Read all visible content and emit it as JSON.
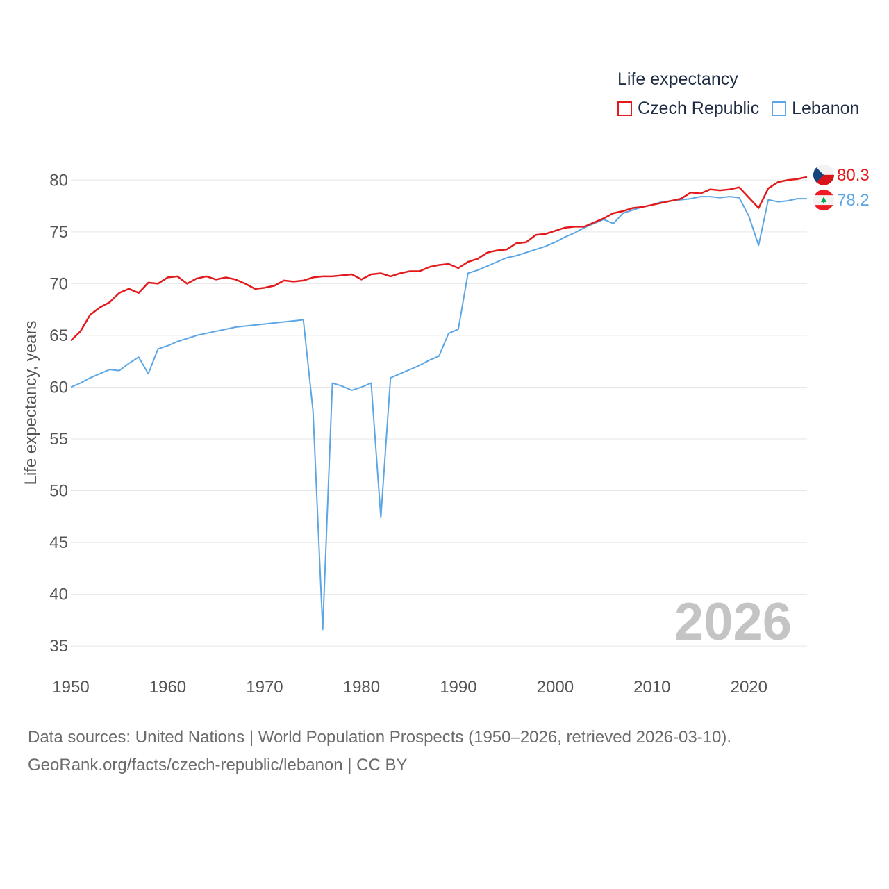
{
  "chart_data": {
    "type": "line",
    "title": "Life expectancy",
    "xlabel": "",
    "ylabel": "Life expectancy, years",
    "xlim": [
      1950,
      2026
    ],
    "ylim": [
      33,
      82.5
    ],
    "xticks": [
      1950,
      1960,
      1970,
      1980,
      1990,
      2000,
      2010,
      2020
    ],
    "yticks": [
      35,
      40,
      45,
      50,
      55,
      60,
      65,
      70,
      75,
      80
    ],
    "grid": true,
    "legend_position": "top-right",
    "year_label": "2026",
    "x": [
      1950,
      1951,
      1952,
      1953,
      1954,
      1955,
      1956,
      1957,
      1958,
      1959,
      1960,
      1961,
      1962,
      1963,
      1964,
      1965,
      1966,
      1967,
      1968,
      1969,
      1970,
      1971,
      1972,
      1973,
      1974,
      1975,
      1976,
      1977,
      1978,
      1979,
      1980,
      1981,
      1982,
      1983,
      1984,
      1985,
      1986,
      1987,
      1988,
      1989,
      1990,
      1991,
      1992,
      1993,
      1994,
      1995,
      1996,
      1997,
      1998,
      1999,
      2000,
      2001,
      2002,
      2003,
      2004,
      2005,
      2006,
      2007,
      2008,
      2009,
      2010,
      2011,
      2012,
      2013,
      2014,
      2015,
      2016,
      2017,
      2018,
      2019,
      2020,
      2021,
      2022,
      2023,
      2024,
      2025,
      2026
    ],
    "series": [
      {
        "name": "Czech Republic",
        "color": "#e31a1c",
        "end_label": "80.3",
        "values": [
          64.5,
          65.4,
          67.0,
          67.7,
          68.2,
          69.1,
          69.5,
          69.1,
          70.1,
          70.0,
          70.6,
          70.7,
          70.0,
          70.5,
          70.7,
          70.4,
          70.6,
          70.4,
          70.0,
          69.5,
          69.6,
          69.8,
          70.3,
          70.2,
          70.3,
          70.6,
          70.7,
          70.7,
          70.8,
          70.9,
          70.4,
          70.9,
          71.0,
          70.7,
          71.0,
          71.2,
          71.2,
          71.6,
          71.8,
          71.9,
          71.5,
          72.1,
          72.4,
          73.0,
          73.2,
          73.3,
          73.9,
          74.0,
          74.7,
          74.8,
          75.1,
          75.4,
          75.5,
          75.5,
          75.9,
          76.3,
          76.8,
          77.0,
          77.3,
          77.4,
          77.6,
          77.8,
          78.0,
          78.2,
          78.8,
          78.7,
          79.1,
          79.0,
          79.1,
          79.3,
          78.3,
          77.3,
          79.2,
          79.8,
          80.0,
          80.1,
          80.3
        ]
      },
      {
        "name": "Lebanon",
        "color": "#5ca6e6",
        "end_label": "78.2",
        "values": [
          60.0,
          60.4,
          60.9,
          61.3,
          61.7,
          61.6,
          62.3,
          62.9,
          61.3,
          63.7,
          64.0,
          64.4,
          64.7,
          65.0,
          65.2,
          65.4,
          65.6,
          65.8,
          65.9,
          66.0,
          66.1,
          66.2,
          66.3,
          66.4,
          66.5,
          57.7,
          36.6,
          60.4,
          60.1,
          59.7,
          60.0,
          60.4,
          47.4,
          60.9,
          61.3,
          61.7,
          62.1,
          62.6,
          63.0,
          65.2,
          65.6,
          71.0,
          71.3,
          71.7,
          72.1,
          72.5,
          72.7,
          73.0,
          73.3,
          73.6,
          74.0,
          74.5,
          74.9,
          75.4,
          75.8,
          76.2,
          75.8,
          76.8,
          77.1,
          77.4,
          77.6,
          77.9,
          78.0,
          78.1,
          78.2,
          78.4,
          78.4,
          78.3,
          78.4,
          78.3,
          76.5,
          73.7,
          78.1,
          77.9,
          78.0,
          78.2,
          78.2
        ]
      }
    ]
  },
  "source": {
    "line1": "Data sources: United Nations | World Population Prospects (1950–2026, retrieved 2026-03-10).",
    "line2": "GeoRank.org/facts/czech-republic/lebanon | CC BY"
  }
}
